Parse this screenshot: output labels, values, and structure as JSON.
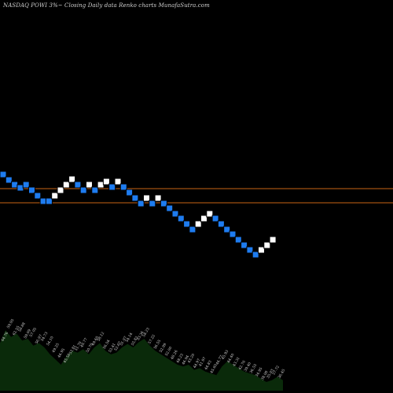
{
  "chart_data": {
    "type": "renko",
    "title": "NASDAQ POWI 3%~  Closing Daily data  Renko  charts MunafaSutra.com",
    "colors": {
      "background": "#000000",
      "up_brick": "#ffffff",
      "down_brick": "#1e7cf0",
      "brick_border": "#000000",
      "reference_line": "#c86414",
      "volume_fill": "#0a2a0a",
      "volume_label": "#d9d9d9"
    },
    "reference_lines": [
      240,
      258
    ],
    "bricks": [
      {
        "dir": "down",
        "level": 220
      },
      {
        "dir": "down",
        "level": 227
      },
      {
        "dir": "down",
        "level": 233
      },
      {
        "dir": "down",
        "level": 237
      },
      {
        "dir": "down",
        "level": 233
      },
      {
        "dir": "down",
        "level": 240
      },
      {
        "dir": "down",
        "level": 247
      },
      {
        "dir": "down",
        "level": 254
      },
      {
        "dir": "down",
        "level": 254
      },
      {
        "dir": "up",
        "level": 247
      },
      {
        "dir": "up",
        "level": 240
      },
      {
        "dir": "up",
        "level": 233
      },
      {
        "dir": "up",
        "level": 226
      },
      {
        "dir": "down",
        "level": 233
      },
      {
        "dir": "down",
        "level": 240
      },
      {
        "dir": "up",
        "level": 233
      },
      {
        "dir": "down",
        "level": 240
      },
      {
        "dir": "up",
        "level": 233
      },
      {
        "dir": "up",
        "level": 229
      },
      {
        "dir": "down",
        "level": 236
      },
      {
        "dir": "up",
        "level": 229
      },
      {
        "dir": "down",
        "level": 236
      },
      {
        "dir": "down",
        "level": 243
      },
      {
        "dir": "down",
        "level": 250
      },
      {
        "dir": "down",
        "level": 257
      },
      {
        "dir": "up",
        "level": 250
      },
      {
        "dir": "down",
        "level": 257
      },
      {
        "dir": "up",
        "level": 250
      },
      {
        "dir": "down",
        "level": 257
      },
      {
        "dir": "down",
        "level": 263
      },
      {
        "dir": "down",
        "level": 270
      },
      {
        "dir": "down",
        "level": 276
      },
      {
        "dir": "down",
        "level": 283
      },
      {
        "dir": "down",
        "level": 290
      },
      {
        "dir": "up",
        "level": 283
      },
      {
        "dir": "up",
        "level": 276
      },
      {
        "dir": "up",
        "level": 270
      },
      {
        "dir": "down",
        "level": 276
      },
      {
        "dir": "down",
        "level": 283
      },
      {
        "dir": "down",
        "level": 290
      },
      {
        "dir": "down",
        "level": 296
      },
      {
        "dir": "down",
        "level": 303
      },
      {
        "dir": "down",
        "level": 310
      },
      {
        "dir": "down",
        "level": 316
      },
      {
        "dir": "down",
        "level": 322
      },
      {
        "dir": "up",
        "level": 316
      },
      {
        "dir": "up",
        "level": 310
      },
      {
        "dir": "up",
        "level": 303
      }
    ],
    "closing_prices": [
      "64.76",
      "59.95",
      "62.55",
      "58.88",
      "59.09",
      "57.05",
      "56.97",
      "54.73",
      "54.10",
      "49.25",
      "46.95",
      "45.58",
      "53.81",
      "51.70",
      "49.77",
      "50.70",
      "49.60",
      "58.12",
      "56.54",
      "53.41",
      "52.67",
      "51.07",
      "54.14",
      "55.82",
      "53.36",
      "58.23",
      "57.22",
      "56.55",
      "52.99",
      "52.00",
      "48.26",
      "48.23",
      "46.94",
      "43.20",
      "44.97",
      "41.97",
      "44.83",
      "45.60",
      "46.77",
      "45.93",
      "44.40",
      "43.31",
      "42.76",
      "39.40",
      "36.55",
      "34.95",
      "38.08",
      "35.03",
      "37.72",
      "36.45"
    ],
    "volume_profile": [
      0.55,
      0.7,
      0.62,
      0.66,
      0.58,
      0.6,
      0.52,
      0.55,
      0.5,
      0.42,
      0.36,
      0.3,
      0.4,
      0.46,
      0.44,
      0.48,
      0.42,
      0.5,
      0.55,
      0.46,
      0.42,
      0.44,
      0.5,
      0.54,
      0.5,
      0.56,
      0.6,
      0.52,
      0.46,
      0.42,
      0.38,
      0.34,
      0.3,
      0.28,
      0.3,
      0.24,
      0.26,
      0.22,
      0.2,
      0.18,
      0.28,
      0.34,
      0.3,
      0.26,
      0.22,
      0.2,
      0.18,
      0.14,
      0.1,
      0.12,
      0.16,
      0.12
    ]
  }
}
